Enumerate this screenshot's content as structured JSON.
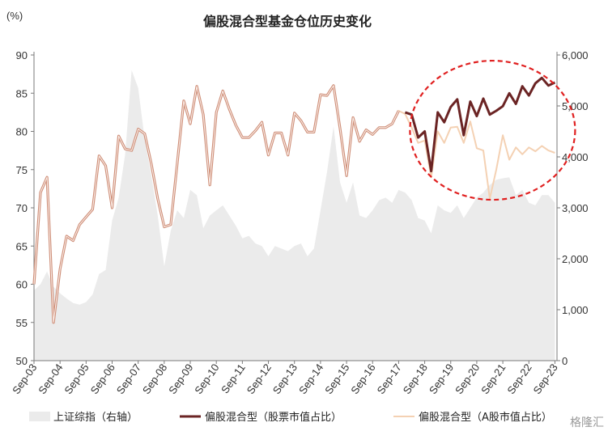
{
  "chart_data": {
    "type": "line",
    "title": "偏股混合型基金仓位历史变化",
    "y_unit": "(%)",
    "ylim": [
      50,
      90
    ],
    "y_ticks": [
      "50",
      "55",
      "60",
      "65",
      "70",
      "75",
      "80",
      "85",
      "90"
    ],
    "y2lim": [
      0,
      6000
    ],
    "y2_ticks": [
      "0",
      "1,000",
      "2,000",
      "3,000",
      "4,000",
      "5,000",
      "6,000"
    ],
    "x_range": [
      2003.67,
      2023.75
    ],
    "x_ticks": [
      "Sep-03",
      "Sep-04",
      "Sep-05",
      "Sep-06",
      "Sep-07",
      "Sep-08",
      "Sep-09",
      "Sep-10",
      "Sep-11",
      "Sep-12",
      "Sep-13",
      "Sep-14",
      "Sep-15",
      "Sep-16",
      "Sep-17",
      "Sep-18",
      "Sep-19",
      "Sep-20",
      "Sep-21",
      "Sep-22",
      "Sep-23"
    ],
    "legend_position": "bottom",
    "legend": [
      {
        "label": "上证综指（右轴）",
        "series": "index"
      },
      {
        "label": "偏股混合型（股票市值占比）",
        "series": "stock"
      },
      {
        "label": "偏股混合型（A股市值占比）",
        "series": "ashare"
      }
    ],
    "colors": {
      "index_fill": "#ebebeb",
      "stock": "#6b2424",
      "stock_early": "#ce8e78",
      "ashare": "#f4d1b3",
      "circle": "#e02020"
    },
    "split_year": 2017.75,
    "annotations": [
      {
        "type": "dashed-ellipse",
        "shape": "ellipse",
        "target": "2018-2023 stock ratio"
      }
    ],
    "series": [
      {
        "key": "stock",
        "name": "偏股混合型（股票市值占比）",
        "axis": "left",
        "x": [
          2003.67,
          2003.92,
          2004.17,
          2004.42,
          2004.67,
          2004.92,
          2005.17,
          2005.42,
          2005.67,
          2005.92,
          2006.17,
          2006.42,
          2006.67,
          2006.92,
          2007.17,
          2007.42,
          2007.67,
          2007.92,
          2008.17,
          2008.42,
          2008.67,
          2008.92,
          2009.17,
          2009.42,
          2009.67,
          2009.92,
          2010.17,
          2010.42,
          2010.67,
          2010.92,
          2011.17,
          2011.42,
          2011.67,
          2011.92,
          2012.17,
          2012.42,
          2012.67,
          2012.92,
          2013.17,
          2013.42,
          2013.67,
          2013.92,
          2014.17,
          2014.42,
          2014.67,
          2014.92,
          2015.17,
          2015.42,
          2015.67,
          2015.92,
          2016.17,
          2016.42,
          2016.67,
          2016.92,
          2017.17,
          2017.42,
          2017.67,
          2017.92,
          2018.17,
          2018.42,
          2018.67,
          2018.92,
          2019.17,
          2019.42,
          2019.67,
          2019.92,
          2020.17,
          2020.42,
          2020.67,
          2020.92,
          2021.17,
          2021.42,
          2021.67,
          2021.92,
          2022.17,
          2022.42,
          2022.67,
          2022.92,
          2023.17,
          2023.42,
          2023.67
        ],
        "values": [
          60.0,
          72.0,
          74.0,
          55.0,
          62.0,
          66.3,
          65.7,
          67.8,
          68.8,
          69.8,
          76.8,
          75.5,
          70.0,
          79.4,
          77.7,
          77.5,
          80.3,
          79.7,
          75.8,
          71.2,
          67.5,
          67.8,
          75.8,
          84.0,
          81.0,
          85.9,
          82.2,
          73.0,
          82.5,
          85.3,
          82.9,
          80.8,
          79.2,
          79.2,
          80.1,
          81.2,
          76.9,
          79.8,
          79.8,
          76.9,
          82.4,
          81.4,
          79.9,
          79.9,
          84.8,
          84.7,
          86.0,
          80.4,
          74.2,
          81.8,
          78.7,
          80.2,
          79.6,
          80.5,
          80.5,
          81.0,
          82.7,
          82.5,
          82.2,
          79.2,
          80.0,
          74.8,
          82.5,
          81.2,
          83.2,
          84.2,
          79.5,
          83.9,
          82.0,
          84.3,
          82.2,
          82.7,
          83.3,
          85.0,
          83.6,
          85.9,
          84.7,
          86.3,
          87.0,
          86.0,
          86.4
        ]
      },
      {
        "key": "ashare",
        "name": "偏股混合型（A股市值占比）",
        "axis": "left",
        "x": [
          2017.42,
          2017.67,
          2017.92,
          2018.17,
          2018.42,
          2018.67,
          2018.92,
          2019.17,
          2019.42,
          2019.67,
          2019.92,
          2020.17,
          2020.42,
          2020.67,
          2020.92,
          2021.17,
          2021.42,
          2021.67,
          2021.92,
          2022.17,
          2022.42,
          2022.67,
          2022.92,
          2023.17,
          2023.42,
          2023.67
        ],
        "values": [
          81.0,
          82.7,
          82.3,
          80.5,
          78.5,
          78.8,
          74.0,
          80.0,
          78.5,
          80.5,
          80.6,
          78.5,
          81.3,
          77.8,
          77.5,
          71.2,
          75.0,
          79.5,
          76.3,
          77.9,
          77.0,
          77.9,
          77.4,
          78.1,
          77.5,
          77.2
        ]
      },
      {
        "key": "index",
        "name": "上证综指（右轴）",
        "axis": "right",
        "x": [
          2003.67,
          2003.92,
          2004.17,
          2004.42,
          2004.67,
          2004.92,
          2005.17,
          2005.42,
          2005.67,
          2005.92,
          2006.17,
          2006.42,
          2006.67,
          2006.92,
          2007.17,
          2007.42,
          2007.67,
          2007.92,
          2008.17,
          2008.42,
          2008.67,
          2008.92,
          2009.17,
          2009.42,
          2009.67,
          2009.92,
          2010.17,
          2010.42,
          2010.67,
          2010.92,
          2011.17,
          2011.42,
          2011.67,
          2011.92,
          2012.17,
          2012.42,
          2012.67,
          2012.92,
          2013.17,
          2013.42,
          2013.67,
          2013.92,
          2014.17,
          2014.42,
          2014.67,
          2014.92,
          2015.17,
          2015.42,
          2015.67,
          2015.92,
          2016.17,
          2016.42,
          2016.67,
          2016.92,
          2017.17,
          2017.42,
          2017.67,
          2017.92,
          2018.17,
          2018.42,
          2018.67,
          2018.92,
          2019.17,
          2019.42,
          2019.67,
          2019.92,
          2020.17,
          2020.42,
          2020.67,
          2020.92,
          2021.17,
          2021.42,
          2021.67,
          2021.92,
          2022.17,
          2022.42,
          2022.67,
          2022.92,
          2023.17,
          2023.42,
          2023.67
        ],
        "values": [
          1380,
          1500,
          1750,
          1450,
          1320,
          1220,
          1130,
          1100,
          1150,
          1300,
          1700,
          1780,
          2750,
          3200,
          4050,
          5700,
          5350,
          4350,
          3650,
          2850,
          1850,
          2550,
          2950,
          2800,
          3350,
          3250,
          2600,
          2850,
          2950,
          3050,
          2850,
          2650,
          2400,
          2450,
          2300,
          2250,
          2050,
          2250,
          2200,
          2150,
          2250,
          2300,
          2050,
          2200,
          2950,
          3700,
          4600,
          3500,
          3100,
          3500,
          2850,
          2800,
          2950,
          3150,
          3200,
          3100,
          3350,
          3300,
          3150,
          2800,
          2750,
          2500,
          3050,
          2950,
          2900,
          3050,
          2800,
          3000,
          3200,
          3300,
          3450,
          3550,
          3580,
          3600,
          3250,
          3350,
          3100,
          3050,
          3250,
          3250,
          3100
        ]
      }
    ]
  },
  "watermark": "格隆汇"
}
